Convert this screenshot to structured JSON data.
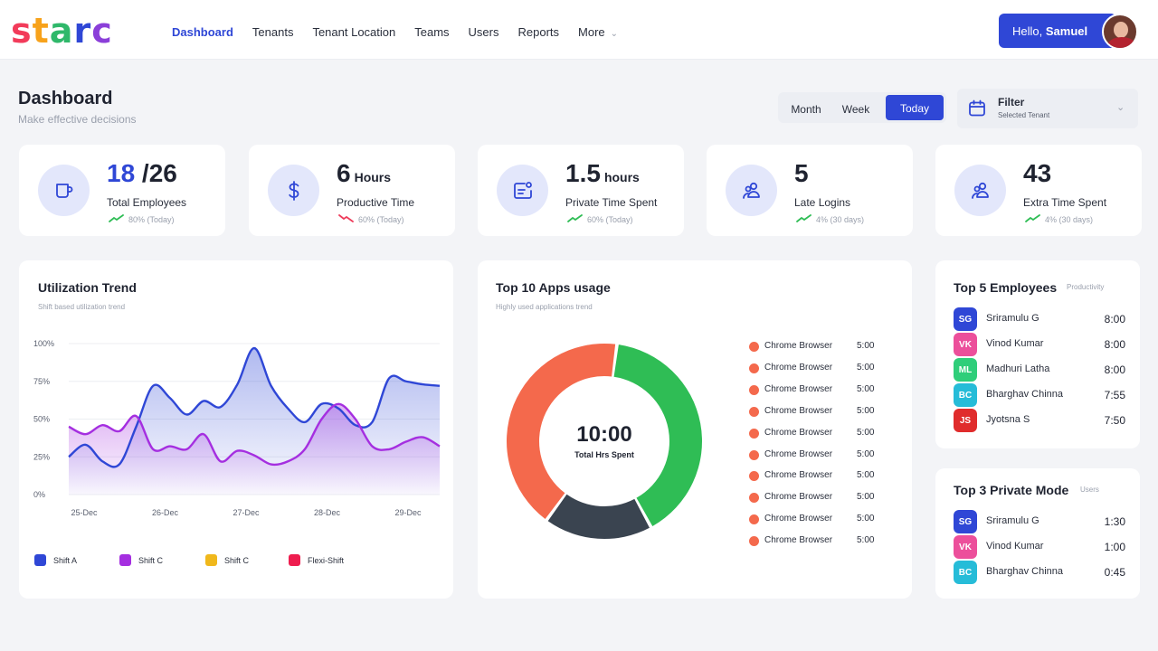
{
  "brand": {
    "letters": [
      {
        "ch": "S",
        "color": "#f23b5a"
      },
      {
        "ch": "T",
        "color": "#f7a21b"
      },
      {
        "ch": "A",
        "color": "#2fb86a"
      },
      {
        "ch": "R",
        "color": "#2f47d6"
      },
      {
        "ch": "C",
        "color": "#8b3fd9"
      }
    ]
  },
  "nav": {
    "items": [
      "Dashboard",
      "Tenants",
      "Tenant Location",
      "Teams",
      "Users",
      "Reports",
      "More"
    ],
    "active": "Dashboard"
  },
  "user": {
    "greeting": "Hello,",
    "name": "Samuel"
  },
  "page": {
    "title": "Dashboard",
    "subtitle": "Make effective decisions"
  },
  "range": {
    "options": [
      "Month",
      "Week",
      "Today"
    ],
    "selected": "Today"
  },
  "filter": {
    "title": "Filter",
    "value": "Selected Tenant"
  },
  "stats": [
    {
      "value": "18",
      "total": "/26",
      "unit": "",
      "label": "Total Employees",
      "trend": "80% (Today)",
      "direction": "up",
      "icon": "mug-icon"
    },
    {
      "value": "6",
      "total": "",
      "unit": "Hours",
      "label": "Productive Time",
      "trend": "60% (Today)",
      "direction": "down",
      "icon": "dollar-icon"
    },
    {
      "value": "1.5",
      "total": "",
      "unit": "hours",
      "label": "Private Time Spent",
      "trend": "60% (Today)",
      "direction": "up",
      "icon": "private-window-icon"
    },
    {
      "value": "5",
      "total": "",
      "unit": "",
      "label": "Late Logins",
      "trend": "4% (30 days)",
      "direction": "up",
      "icon": "users-icon"
    },
    {
      "value": "43",
      "total": "",
      "unit": "",
      "label": "Extra Time Spent",
      "trend": "4% (30 days)",
      "direction": "up",
      "icon": "users-icon"
    }
  ],
  "utilization": {
    "title": "Utilization Trend",
    "subtitle": "Shift based utilization trend",
    "legend": [
      {
        "name": "Shift A",
        "color": "#2f47d6"
      },
      {
        "name": "Shift C",
        "color": "#a52fe0"
      },
      {
        "name": "Shift C",
        "color": "#f0b81c"
      },
      {
        "name": "Flexi-Shift",
        "color": "#ee1d4f"
      }
    ]
  },
  "apps": {
    "title": "Top 10 Apps usage",
    "subtitle": "Highly used applications trend",
    "center_value": "10:00",
    "center_label": "Total Hrs Spent",
    "items": [
      {
        "name": "Chrome Browser",
        "time": "5:00"
      },
      {
        "name": "Chrome Browser",
        "time": "5:00"
      },
      {
        "name": "Chrome Browser",
        "time": "5:00"
      },
      {
        "name": "Chrome Browser",
        "time": "5:00"
      },
      {
        "name": "Chrome Browser",
        "time": "5:00"
      },
      {
        "name": "Chrome Browser",
        "time": "5:00"
      },
      {
        "name": "Chrome Browser",
        "time": "5:00"
      },
      {
        "name": "Chrome Browser",
        "time": "5:00"
      },
      {
        "name": "Chrome Browser",
        "time": "5:00"
      },
      {
        "name": "Chrome Browser",
        "time": "5:00"
      }
    ]
  },
  "top_employees": {
    "title": "Top 5 Employees",
    "tag": "Productivity",
    "rows": [
      {
        "initials": "SG",
        "name": "Sriramulu G",
        "time": "8:00",
        "color": "#2f47d6"
      },
      {
        "initials": "VK",
        "name": "Vinod Kumar",
        "time": "8:00",
        "color": "#ec4f9b"
      },
      {
        "initials": "ML",
        "name": "Madhuri Latha",
        "time": "8:00",
        "color": "#2fce7a"
      },
      {
        "initials": "BC",
        "name": "Bharghav Chinna",
        "time": "7:55",
        "color": "#26bcd8"
      },
      {
        "initials": "JS",
        "name": "Jyotsna S",
        "time": "7:50",
        "color": "#e02c2c"
      }
    ]
  },
  "private_mode": {
    "title": "Top 3 Private Mode",
    "tag": "Users",
    "rows": [
      {
        "initials": "SG",
        "name": "Sriramulu G",
        "time": "1:30",
        "color": "#2f47d6"
      },
      {
        "initials": "VK",
        "name": "Vinod Kumar",
        "time": "1:00",
        "color": "#ec4f9b"
      },
      {
        "initials": "BC",
        "name": "Bharghav Chinna",
        "time": "0:45",
        "color": "#26bcd8"
      }
    ]
  },
  "chart_data": [
    {
      "type": "area",
      "title": "Utilization Trend",
      "x": [
        "25-Dec",
        "26-Dec",
        "27-Dec",
        "28-Dec",
        "29-Dec"
      ],
      "yticks": [
        "100%",
        "75%",
        "50%",
        "25%",
        "0%"
      ],
      "ylim": [
        0,
        100
      ],
      "grid": true,
      "legend": "bottom",
      "series": [
        {
          "name": "Shift A",
          "color": "#2f47d6",
          "x": [
            0,
            0.2,
            0.4,
            0.6,
            0.8,
            1.0,
            1.2,
            1.4,
            1.6,
            1.8,
            2.0,
            2.2,
            2.4,
            2.6,
            2.8,
            3.0,
            3.2,
            3.4,
            3.6,
            3.8,
            4.0,
            4.2,
            4.4
          ],
          "y": [
            25,
            33,
            22,
            20,
            45,
            72,
            64,
            53,
            62,
            58,
            73,
            97,
            72,
            57,
            48,
            60,
            57,
            46,
            48,
            77,
            75,
            73,
            72
          ]
        },
        {
          "name": "Shift C",
          "color": "#a52fe0",
          "x": [
            0,
            0.2,
            0.4,
            0.6,
            0.8,
            1.0,
            1.2,
            1.4,
            1.6,
            1.8,
            2.0,
            2.2,
            2.4,
            2.6,
            2.8,
            3.0,
            3.2,
            3.4,
            3.6,
            3.8,
            4.0,
            4.2,
            4.4
          ],
          "y": [
            45,
            40,
            46,
            42,
            52,
            30,
            32,
            30,
            40,
            22,
            29,
            26,
            20,
            22,
            30,
            50,
            60,
            50,
            32,
            30,
            35,
            38,
            32
          ]
        }
      ]
    },
    {
      "type": "pie",
      "title": "Top 10 Apps usage",
      "total_label": "10:00",
      "slices": [
        {
          "color": "#2fbd55",
          "value": 40
        },
        {
          "color": "#3a4450",
          "value": 18
        },
        {
          "color": "#f4694c",
          "value": 42
        }
      ]
    }
  ]
}
